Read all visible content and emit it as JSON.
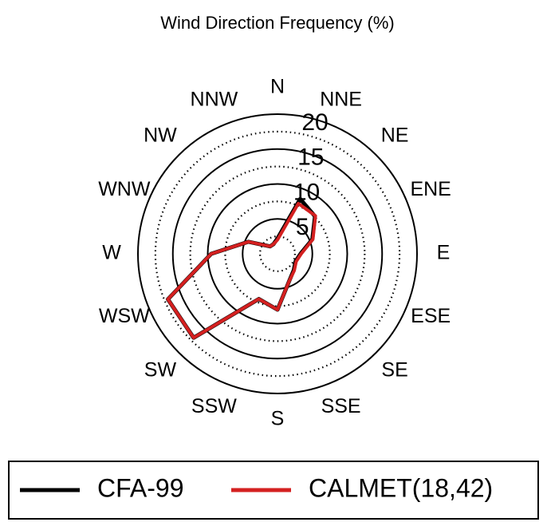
{
  "chart_data": {
    "type": "radar",
    "title": "Wind Direction Frequency (%)",
    "categories": [
      "N",
      "NNE",
      "NE",
      "ENE",
      "E",
      "ESE",
      "SE",
      "SSE",
      "S",
      "SSW",
      "SW",
      "WSW",
      "W",
      "WNW",
      "NW",
      "NNW"
    ],
    "ylim": [
      0,
      20
    ],
    "yticks": [
      5,
      10,
      15,
      20
    ],
    "minor_yticks": [
      2.5,
      7.5,
      12.5,
      17.5
    ],
    "series": [
      {
        "name": "CFA-99",
        "color": "#000000",
        "values": [
          2.2,
          8.5,
          7.6,
          5.4,
          3.3,
          2.8,
          3.3,
          4.3,
          8,
          7,
          17,
          17,
          9.5,
          4.5,
          1.5,
          1.5
        ]
      },
      {
        "name": "CALMET(18,42)",
        "color": "#d42020",
        "values": [
          2,
          7.8,
          7.7,
          5.5,
          3.4,
          2.9,
          3.4,
          4.3,
          8,
          7,
          17,
          17,
          9.5,
          4.5,
          1.5,
          1.5
        ]
      }
    ],
    "legend": "bottom"
  }
}
